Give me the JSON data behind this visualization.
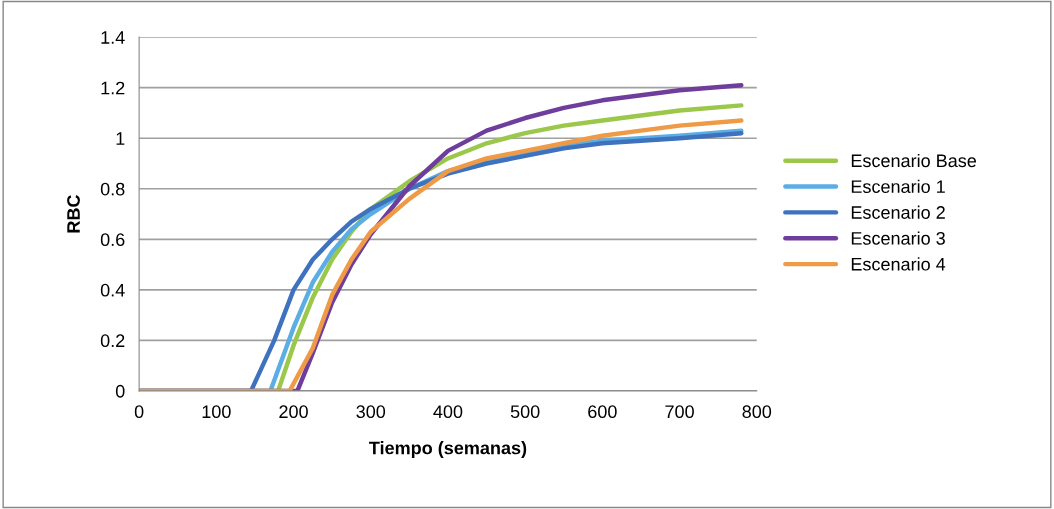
{
  "chart_data": {
    "type": "line",
    "xlabel": "Tiempo (semanas)",
    "ylabel": "RBC",
    "xlim": [
      0,
      800
    ],
    "xticks": [
      0,
      100,
      200,
      300,
      400,
      500,
      600,
      700,
      800
    ],
    "ylim": [
      0,
      1.4
    ],
    "yticks": [
      0,
      0.2,
      0.4,
      0.6,
      0.8,
      1,
      1.2,
      1.4
    ],
    "grid": "y",
    "legend": "right",
    "marker": "none",
    "line_style": "solid",
    "series": [
      {
        "name": "Escenario Base",
        "color": "#9bc84a",
        "x": [
          0,
          180,
          200,
          225,
          250,
          275,
          300,
          350,
          400,
          450,
          500,
          550,
          600,
          650,
          700,
          780
        ],
        "values": [
          0,
          0,
          0.18,
          0.37,
          0.52,
          0.63,
          0.72,
          0.83,
          0.92,
          0.98,
          1.02,
          1.05,
          1.07,
          1.09,
          1.11,
          1.13
        ]
      },
      {
        "name": "Escenario 1",
        "color": "#5aaee3",
        "x": [
          0,
          170,
          200,
          225,
          250,
          275,
          300,
          350,
          400,
          450,
          500,
          550,
          600,
          650,
          700,
          780
        ],
        "values": [
          0,
          0,
          0.25,
          0.43,
          0.55,
          0.64,
          0.7,
          0.8,
          0.87,
          0.91,
          0.94,
          0.97,
          0.99,
          1.0,
          1.01,
          1.03
        ]
      },
      {
        "name": "Escenario 2",
        "color": "#3e72bf",
        "x": [
          0,
          145,
          175,
          200,
          225,
          250,
          275,
          300,
          350,
          400,
          450,
          500,
          550,
          600,
          650,
          700,
          780
        ],
        "values": [
          0,
          0,
          0.2,
          0.4,
          0.52,
          0.6,
          0.67,
          0.72,
          0.8,
          0.86,
          0.9,
          0.93,
          0.96,
          0.98,
          0.99,
          1.0,
          1.02
        ]
      },
      {
        "name": "Escenario 3",
        "color": "#6f3d9c",
        "x": [
          0,
          205,
          225,
          250,
          275,
          300,
          350,
          400,
          450,
          500,
          550,
          600,
          650,
          700,
          780
        ],
        "values": [
          0,
          0,
          0.15,
          0.35,
          0.5,
          0.62,
          0.81,
          0.95,
          1.03,
          1.08,
          1.12,
          1.15,
          1.17,
          1.19,
          1.21
        ]
      },
      {
        "name": "Escenario 4",
        "color": "#ef9a47",
        "x": [
          0,
          195,
          225,
          250,
          275,
          300,
          350,
          400,
          450,
          500,
          550,
          600,
          650,
          700,
          780
        ],
        "values": [
          0,
          0,
          0.17,
          0.38,
          0.52,
          0.63,
          0.76,
          0.87,
          0.92,
          0.95,
          0.98,
          1.01,
          1.03,
          1.05,
          1.07
        ]
      }
    ]
  }
}
